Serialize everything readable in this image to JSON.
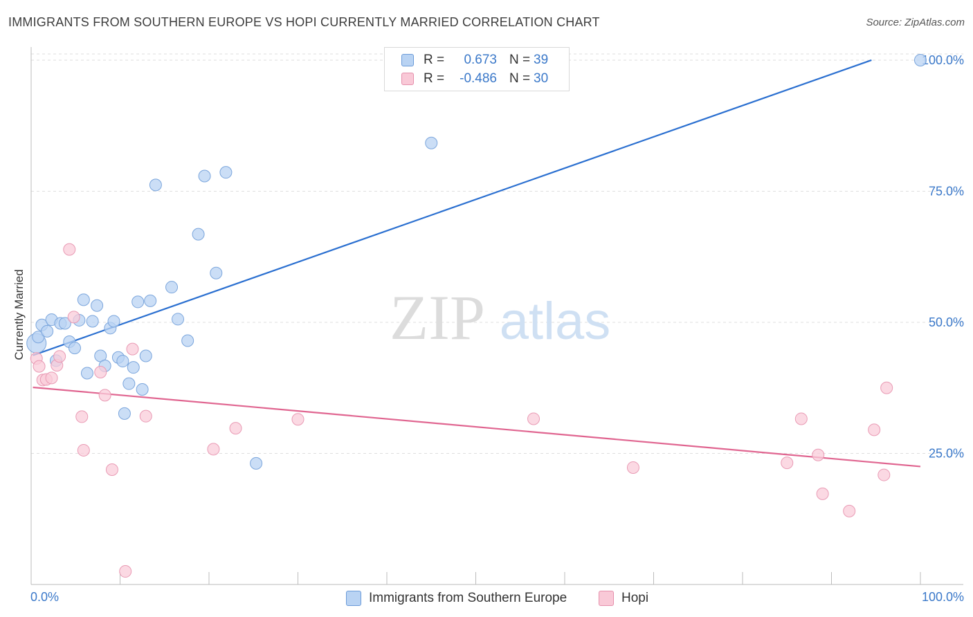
{
  "header": {
    "title": "IMMIGRANTS FROM SOUTHERN EUROPE VS HOPI CURRENTLY MARRIED CORRELATION CHART",
    "source": "Source: ZipAtlas.com"
  },
  "watermark": {
    "zip": "ZIP",
    "atlas": "atlas"
  },
  "legend": {
    "r_label": "R =",
    "n_label": "N =",
    "series": [
      {
        "r": "0.673",
        "n": "39",
        "fill": "#b9d3f3",
        "stroke": "#6a9ad8"
      },
      {
        "r": "-0.486",
        "n": "30",
        "fill": "#f9c9d7",
        "stroke": "#e58fab"
      }
    ]
  },
  "colors": {
    "blue_line": "#2a6fd0",
    "pink_line": "#e06590",
    "blue_point_fill": "#b9d3f3",
    "blue_point_stroke": "#7aa5dc",
    "pink_point_fill": "#f9ccd9",
    "pink_point_stroke": "#e99ab4",
    "tick_text": "#3a78c9",
    "grid": "#dedede"
  },
  "chart_data": {
    "type": "scatter",
    "title": "IMMIGRANTS FROM SOUTHERN EUROPE VS HOPI CURRENTLY MARRIED CORRELATION CHART",
    "xlabel": "",
    "ylabel": "Currently Married",
    "xlim": [
      0,
      100
    ],
    "ylim": [
      0,
      102.5
    ],
    "x_tick_labels": [
      "0.0%",
      "100.0%"
    ],
    "y_ticks": [
      25,
      50,
      75,
      100
    ],
    "y_tick_labels": [
      "25.0%",
      "50.0%",
      "75.0%",
      "100.0%"
    ],
    "grid": true,
    "legend_position": "top-center and bottom",
    "series": [
      {
        "name": "Immigrants from Southern Europe",
        "r": 0.673,
        "n": 39,
        "trend": {
          "x": [
            0.2,
            94.5
          ],
          "y": [
            43.7,
            100.0
          ]
        },
        "points": [
          [
            0.6,
            46.0
          ],
          [
            0.8,
            47.2
          ],
          [
            1.2,
            49.5
          ],
          [
            1.8,
            48.3
          ],
          [
            2.3,
            50.5
          ],
          [
            2.8,
            42.7
          ],
          [
            3.3,
            49.8
          ],
          [
            3.8,
            49.8
          ],
          [
            4.3,
            46.3
          ],
          [
            4.9,
            45.1
          ],
          [
            5.4,
            50.4
          ],
          [
            5.9,
            54.3
          ],
          [
            6.3,
            40.3
          ],
          [
            6.9,
            50.2
          ],
          [
            7.4,
            53.2
          ],
          [
            7.8,
            43.6
          ],
          [
            8.3,
            41.7
          ],
          [
            8.9,
            48.9
          ],
          [
            9.3,
            50.2
          ],
          [
            9.8,
            43.3
          ],
          [
            10.3,
            42.6
          ],
          [
            10.5,
            32.6
          ],
          [
            11.0,
            38.3
          ],
          [
            11.5,
            41.4
          ],
          [
            12.0,
            53.9
          ],
          [
            12.5,
            37.2
          ],
          [
            12.9,
            43.6
          ],
          [
            13.4,
            54.1
          ],
          [
            14.0,
            76.2
          ],
          [
            15.8,
            56.7
          ],
          [
            16.5,
            50.6
          ],
          [
            17.6,
            46.5
          ],
          [
            18.8,
            66.8
          ],
          [
            19.5,
            77.9
          ],
          [
            20.8,
            59.4
          ],
          [
            21.9,
            78.6
          ],
          [
            25.3,
            23.1
          ],
          [
            45.0,
            84.2
          ],
          [
            100.0,
            100.0
          ]
        ]
      },
      {
        "name": "Hopi",
        "r": -0.486,
        "n": 30,
        "trend": {
          "x": [
            0.2,
            100.0
          ],
          "y": [
            37.6,
            22.5
          ]
        },
        "points": [
          [
            0.6,
            43.1
          ],
          [
            0.9,
            41.6
          ],
          [
            1.3,
            39.0
          ],
          [
            1.7,
            39.1
          ],
          [
            2.3,
            39.4
          ],
          [
            2.9,
            41.8
          ],
          [
            3.2,
            43.5
          ],
          [
            4.3,
            63.9
          ],
          [
            4.8,
            51.0
          ],
          [
            5.7,
            32.0
          ],
          [
            5.9,
            25.6
          ],
          [
            7.8,
            40.5
          ],
          [
            8.3,
            36.1
          ],
          [
            9.1,
            21.9
          ],
          [
            10.6,
            2.5
          ],
          [
            11.4,
            44.9
          ],
          [
            12.9,
            32.1
          ],
          [
            20.5,
            25.8
          ],
          [
            23.0,
            29.8
          ],
          [
            30.0,
            31.5
          ],
          [
            56.5,
            31.6
          ],
          [
            67.7,
            22.3
          ],
          [
            85.0,
            23.2
          ],
          [
            86.6,
            31.6
          ],
          [
            88.5,
            24.7
          ],
          [
            89.0,
            17.3
          ],
          [
            92.0,
            14.0
          ],
          [
            94.8,
            29.5
          ],
          [
            95.9,
            20.9
          ],
          [
            96.2,
            37.5
          ]
        ]
      }
    ]
  }
}
